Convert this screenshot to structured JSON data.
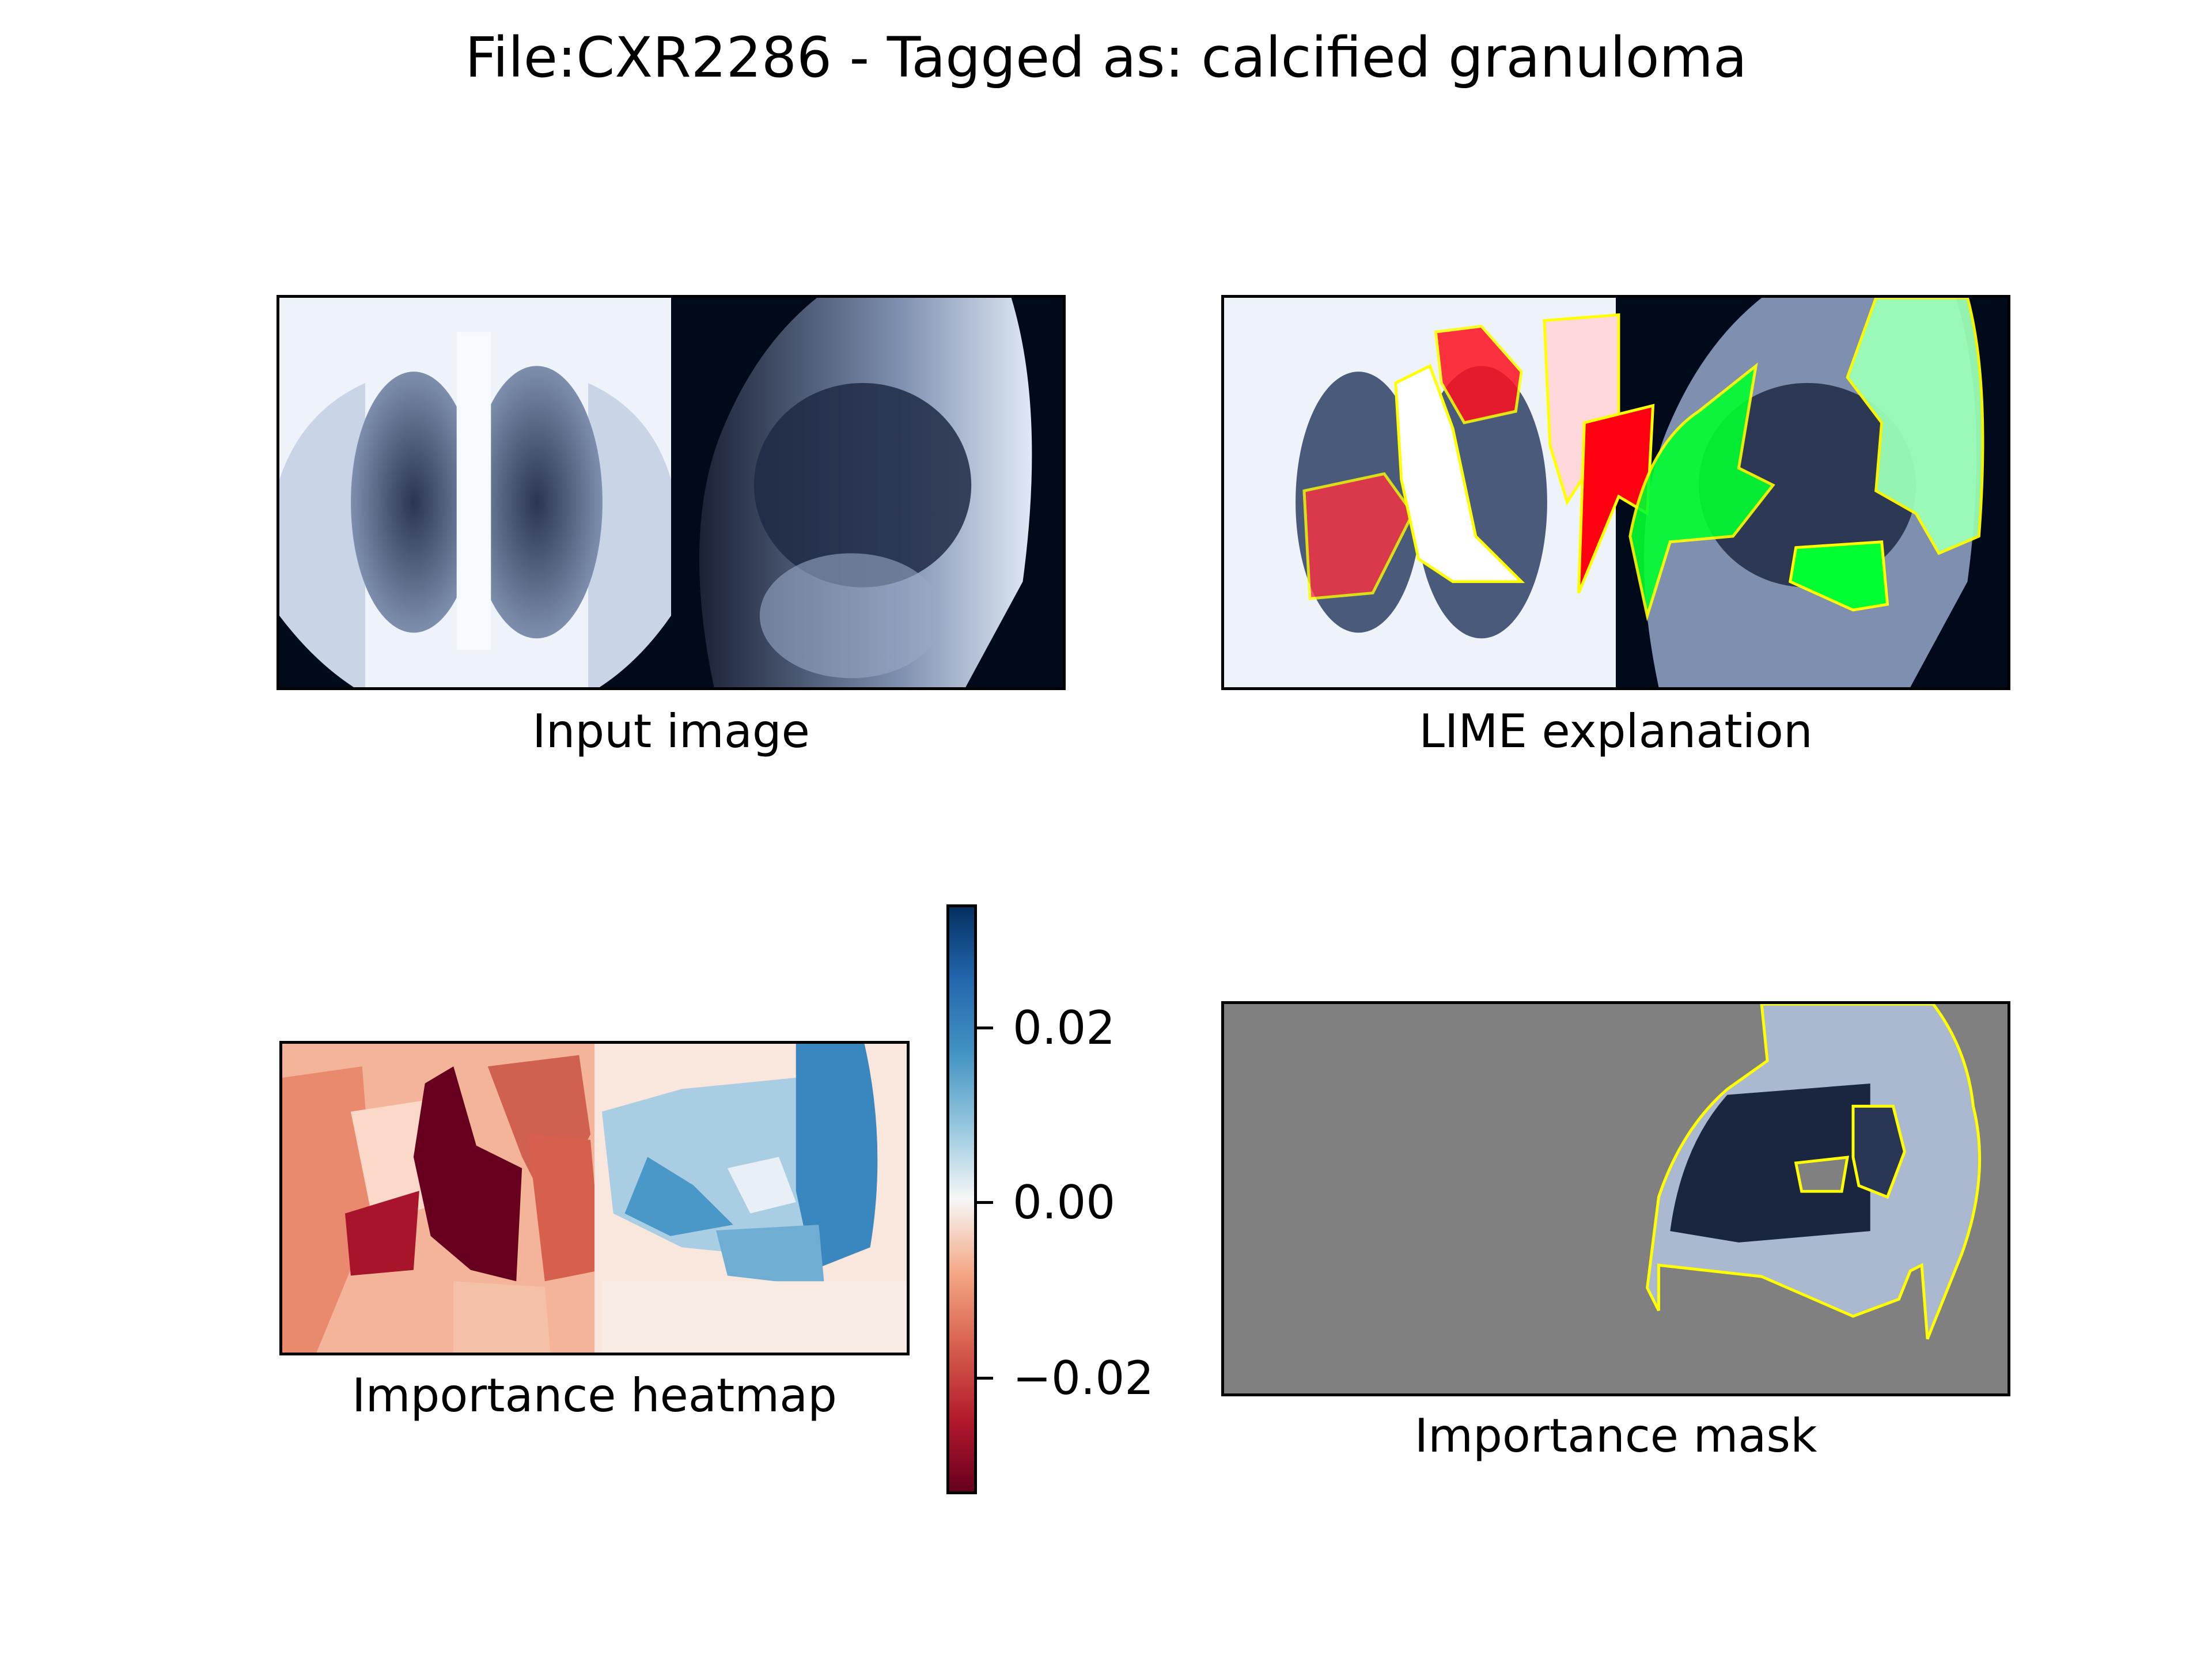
{
  "figure": {
    "title": "File:CXR2286 - Tagged as: calcified granuloma"
  },
  "panels": {
    "input": {
      "caption": "Input image"
    },
    "lime": {
      "caption": "LIME explanation"
    },
    "heatmap": {
      "caption": "Importance heatmap"
    },
    "mask": {
      "caption": "Importance mask"
    }
  },
  "colorbar": {
    "ticks": [
      "0.02",
      "0.00",
      "−0.02"
    ],
    "range": [
      -0.033,
      0.033
    ],
    "tick_values": [
      0.02,
      0.0,
      -0.02
    ],
    "colormap": "RdBu"
  },
  "colors": {
    "positive_region": "#00ff00",
    "negative_region": "#ff0000",
    "boundary": "#ffff00",
    "mask_background": "#808080"
  }
}
